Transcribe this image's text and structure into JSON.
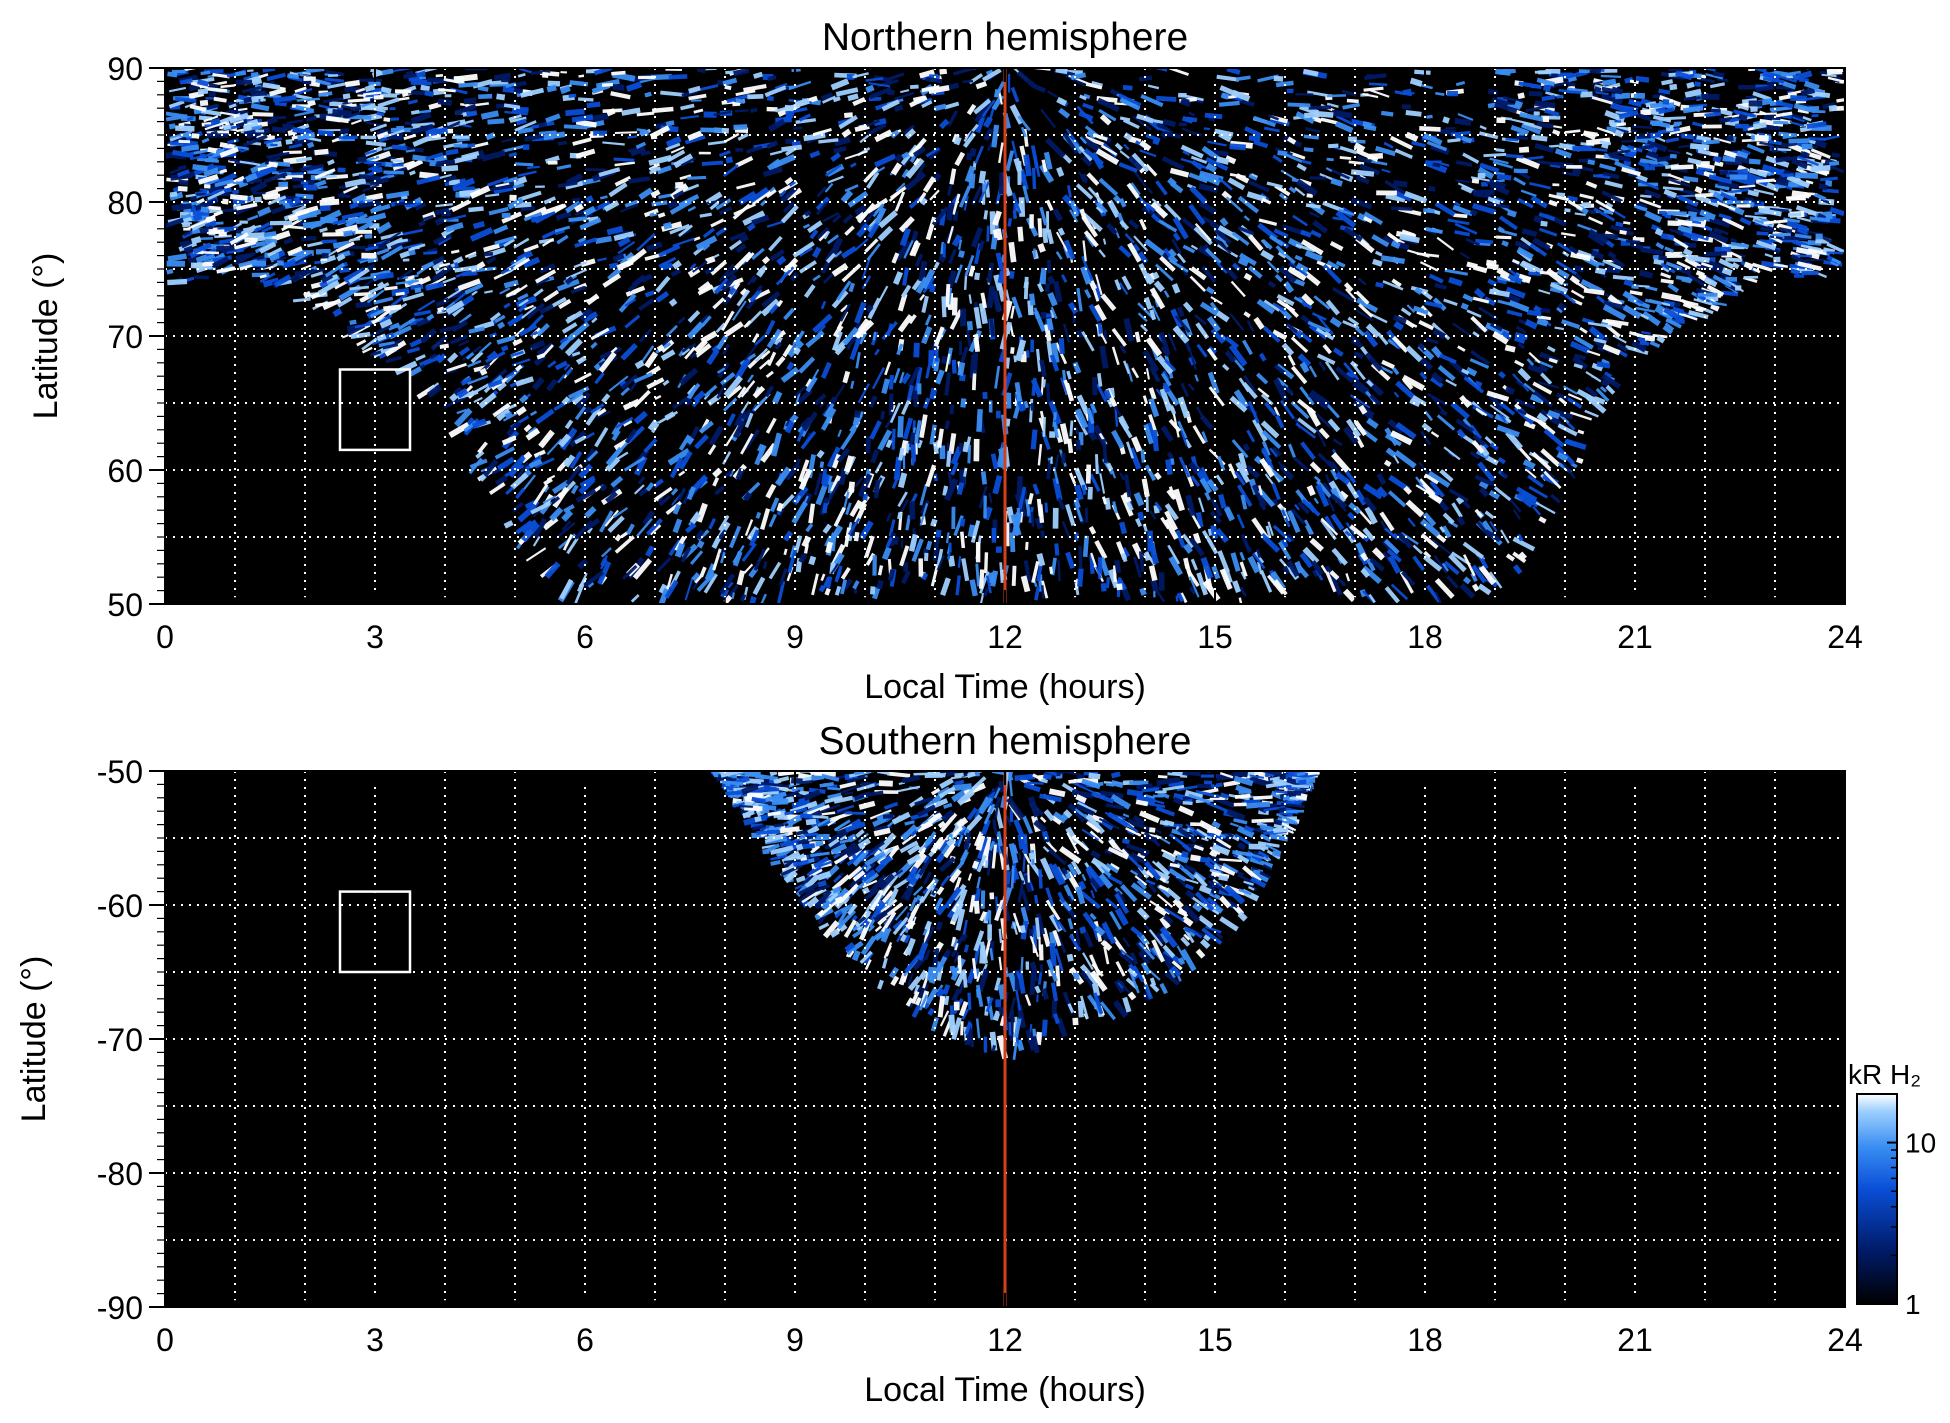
{
  "chart_data": [
    {
      "type": "heatmap",
      "id": "north",
      "title": "Northern hemisphere",
      "xlabel": "Local Time (hours)",
      "ylabel": "Latitude (°)",
      "xlim": [
        0,
        24
      ],
      "ylim": [
        50,
        90
      ],
      "x_ticks": [
        "0",
        "3",
        "6",
        "9",
        "12",
        "15",
        "18",
        "21",
        "24"
      ],
      "y_ticks": [
        "50",
        "60",
        "70",
        "80",
        "90"
      ],
      "grid": "dotted, every 1 hour in local time and every 5° in latitude",
      "marker_line_local_time": 12,
      "marker_line_color": "#d4401c",
      "box_local_time": [
        2.5,
        3.5
      ],
      "box_latitude": [
        61.5,
        67.5
      ],
      "emission_region": {
        "local_time": [
          0,
          24
        ],
        "lowest_latitude_by_local_time": [
          [
            0,
            73.5
          ],
          [
            1,
            75
          ],
          [
            2,
            72
          ],
          [
            3,
            68
          ],
          [
            4,
            63
          ],
          [
            4.5,
            58
          ],
          [
            5,
            54
          ],
          [
            5.5,
            50
          ],
          [
            19,
            50
          ],
          [
            19.5,
            53
          ],
          [
            20,
            58
          ],
          [
            20.5,
            63
          ],
          [
            21,
            68
          ],
          [
            22,
            71
          ],
          [
            23,
            75
          ],
          [
            24,
            73.5
          ]
        ]
      }
    },
    {
      "type": "heatmap",
      "id": "south",
      "title": "Southern hemisphere",
      "xlabel": "Local Time (hours)",
      "ylabel": "Latitude (°)",
      "xlim": [
        0,
        24
      ],
      "ylim": [
        -90,
        -50
      ],
      "x_ticks": [
        "0",
        "3",
        "6",
        "9",
        "12",
        "15",
        "18",
        "21",
        "24"
      ],
      "y_ticks": [
        "-50",
        "-60",
        "-70",
        "-80",
        "-90"
      ],
      "grid": "dotted, every 1 hour in local time and every 5° in latitude",
      "marker_line_local_time": 12,
      "marker_line_color": "#d4401c",
      "box_local_time": [
        2.5,
        3.5
      ],
      "box_latitude": [
        -65,
        -59
      ],
      "emission_region": {
        "local_time": [
          7.8,
          16.5
        ],
        "lowest_latitude_by_local_time": [
          [
            7.8,
            -50
          ],
          [
            8.5,
            -56
          ],
          [
            9.5,
            -63
          ],
          [
            10.5,
            -68
          ],
          [
            11.5,
            -71
          ],
          [
            12,
            -72
          ],
          [
            12.5,
            -71
          ],
          [
            13.5,
            -69
          ],
          [
            14.5,
            -66
          ],
          [
            15.5,
            -61
          ],
          [
            16.2,
            -54
          ],
          [
            16.5,
            -50
          ]
        ]
      }
    }
  ],
  "colorbar": {
    "label": "kR H₂",
    "scale": "log",
    "range": [
      1,
      20
    ],
    "ticks": [
      "10",
      "1"
    ],
    "colors": [
      "#000000",
      "#001a66",
      "#0a4fd8",
      "#3a8ef2",
      "#9fd0ff",
      "#ffffff"
    ]
  }
}
